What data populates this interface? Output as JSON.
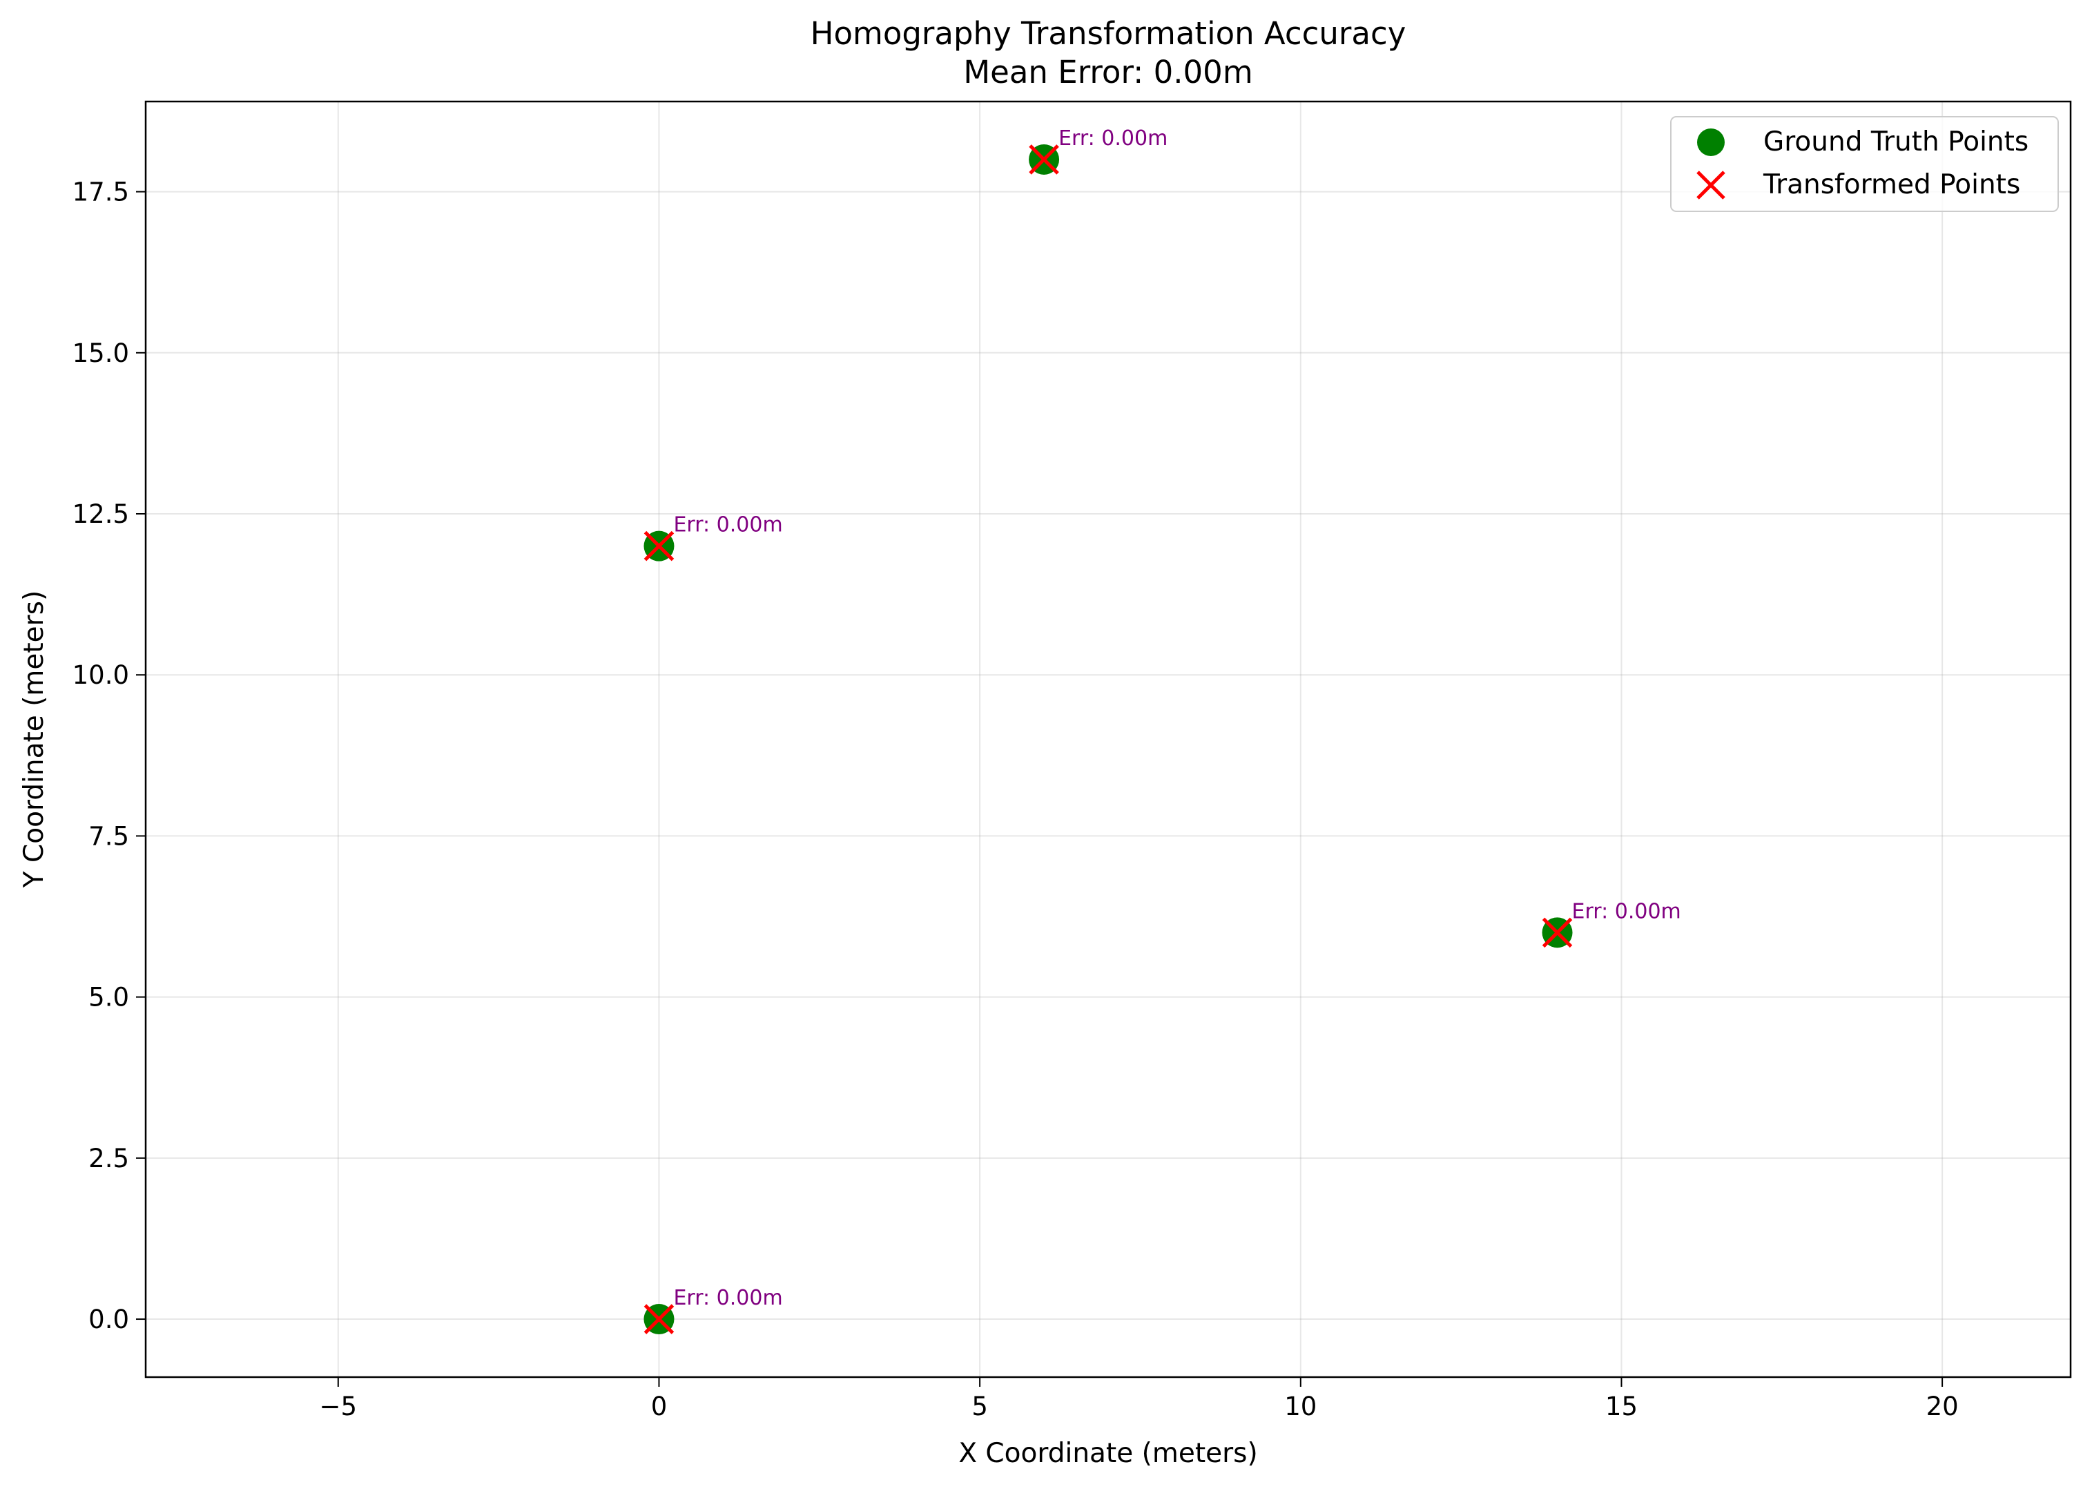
{
  "chart_data": {
    "type": "scatter",
    "title": "Homography Transformation Accuracy",
    "subtitle": "Mean Error: 0.00m",
    "xlabel": "X Coordinate (meters)",
    "ylabel": "Y Coordinate (meters)",
    "xlim": [
      -8.0,
      22.0
    ],
    "ylim": [
      -0.9,
      18.9
    ],
    "xticks": [
      -5,
      0,
      5,
      10,
      15,
      20
    ],
    "xtick_labels": [
      "−5",
      "0",
      "5",
      "10",
      "15",
      "20"
    ],
    "yticks": [
      0,
      2.5,
      5,
      7.5,
      10,
      12.5,
      15,
      17.5
    ],
    "ytick_labels": [
      "0.0",
      "2.5",
      "5.0",
      "7.5",
      "10.0",
      "12.5",
      "15.0",
      "17.5"
    ],
    "grid": true,
    "legend_position": "top-right",
    "series": [
      {
        "name": "Ground Truth Points",
        "marker": "circle",
        "color": "#008000",
        "points": [
          {
            "x": 0,
            "y": 0
          },
          {
            "x": 0,
            "y": 12
          },
          {
            "x": 6,
            "y": 18
          },
          {
            "x": 14,
            "y": 6
          }
        ]
      },
      {
        "name": "Transformed Points",
        "marker": "x",
        "color": "#ff0000",
        "points": [
          {
            "x": 0,
            "y": 0
          },
          {
            "x": 0,
            "y": 12
          },
          {
            "x": 6,
            "y": 18
          },
          {
            "x": 14,
            "y": 6
          }
        ]
      }
    ],
    "annotations": [
      {
        "x": 0,
        "y": 0,
        "text": "Err: 0.00m"
      },
      {
        "x": 0,
        "y": 12,
        "text": "Err: 0.00m"
      },
      {
        "x": 6,
        "y": 18,
        "text": "Err: 0.00m"
      },
      {
        "x": 14,
        "y": 6,
        "text": "Err: 0.00m"
      }
    ],
    "annotation_color": "#800080"
  }
}
